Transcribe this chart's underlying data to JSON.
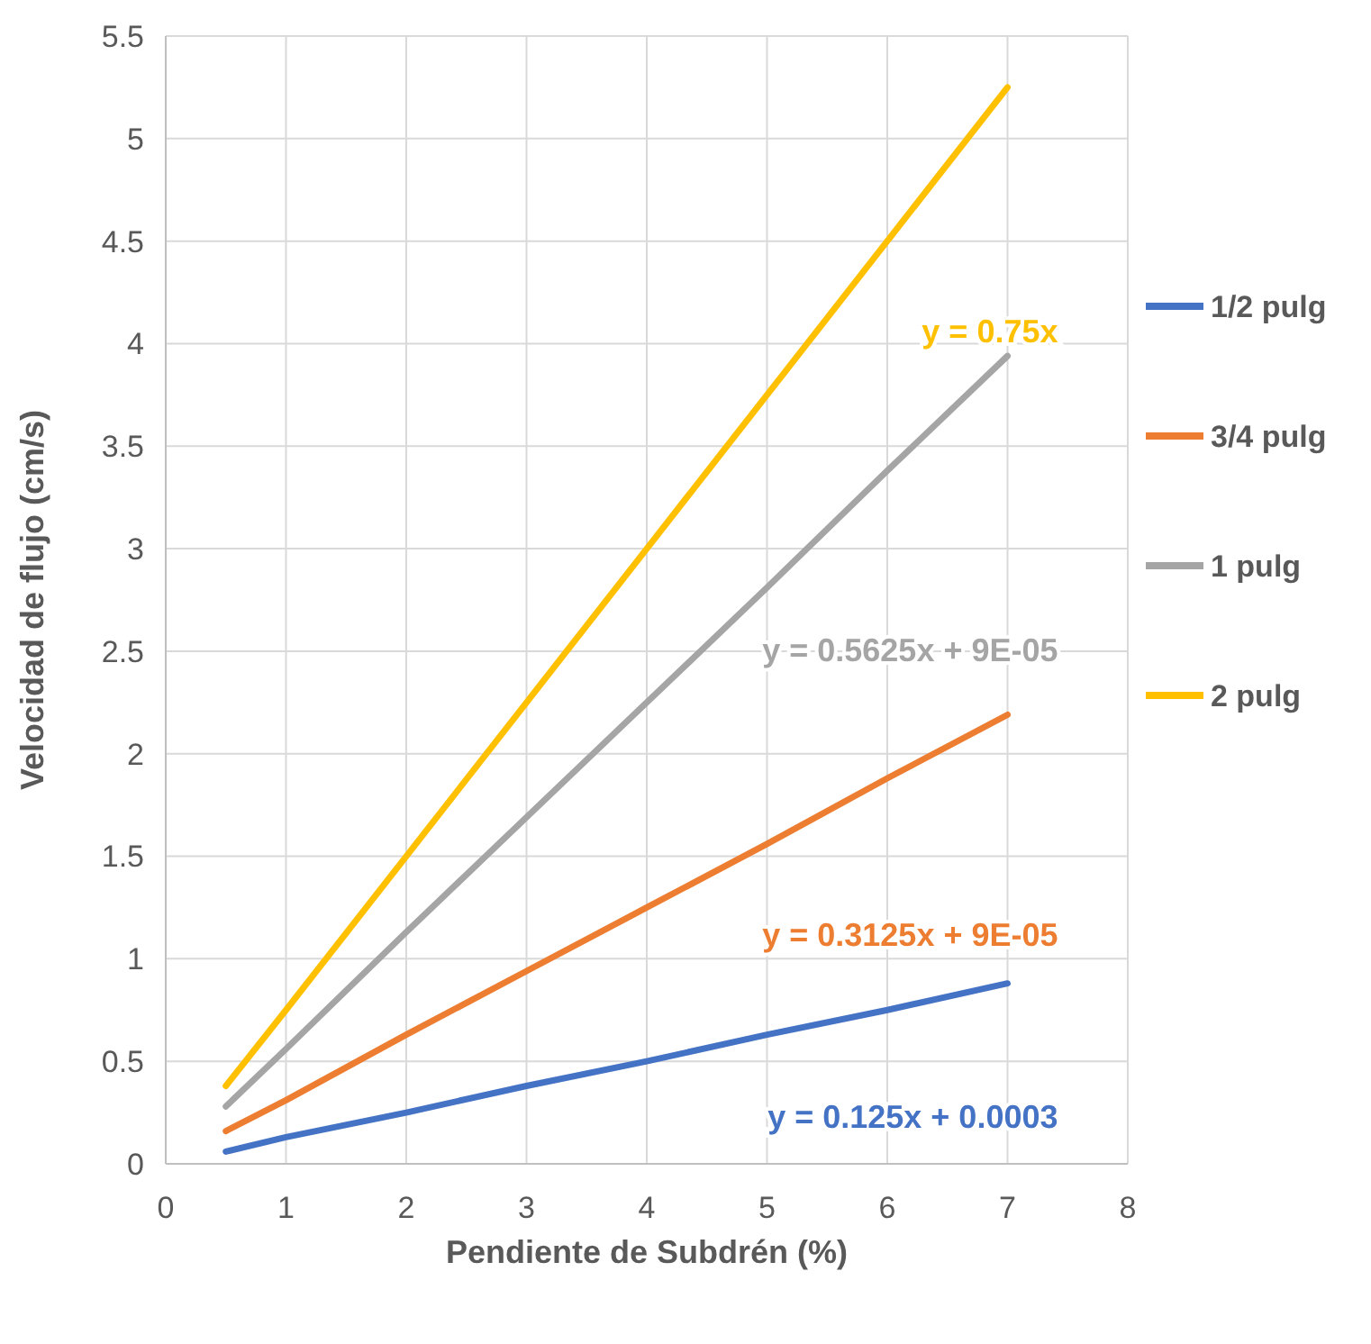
{
  "chart_data": {
    "type": "line",
    "xlabel": "Pendiente de Subdrén (%)",
    "ylabel": "Velocidad de flujo (cm/s)",
    "x": [
      0.5,
      1,
      2,
      3,
      4,
      5,
      6,
      7
    ],
    "series": [
      {
        "name": "1/2 pulg",
        "color": "#4472c4",
        "values": [
          0.06,
          0.13,
          0.25,
          0.38,
          0.5,
          0.63,
          0.75,
          0.88
        ]
      },
      {
        "name": "3/4 pulg",
        "color": "#ed7d31",
        "values": [
          0.16,
          0.31,
          0.63,
          0.94,
          1.25,
          1.56,
          1.88,
          2.19
        ]
      },
      {
        "name": "1 pulg",
        "color": "#a5a5a5",
        "values": [
          0.28,
          0.56,
          1.13,
          1.69,
          2.25,
          2.81,
          3.38,
          3.94
        ]
      },
      {
        "name": "2 pulg",
        "color": "#ffc000",
        "values": [
          0.38,
          0.75,
          1.5,
          2.25,
          3,
          3.75,
          4.5,
          5.25
        ]
      }
    ],
    "annotations": [
      "y = 0.125x + 0.0003",
      "y = 0.3125x + 9E-05",
      "y = 0.5625x + 9E-05",
      "y = 0.75x"
    ],
    "xlim": [
      0,
      8
    ],
    "xticks": [
      0,
      1,
      2,
      3,
      4,
      5,
      6,
      7,
      8
    ],
    "ylim": [
      0,
      5.5
    ],
    "yticks": [
      0,
      0.5,
      1,
      1.5,
      2,
      2.5,
      3,
      3.5,
      4,
      4.5,
      5,
      5.5
    ],
    "grid": true,
    "legend": "right",
    "marker": "none",
    "line_style": "solid"
  }
}
